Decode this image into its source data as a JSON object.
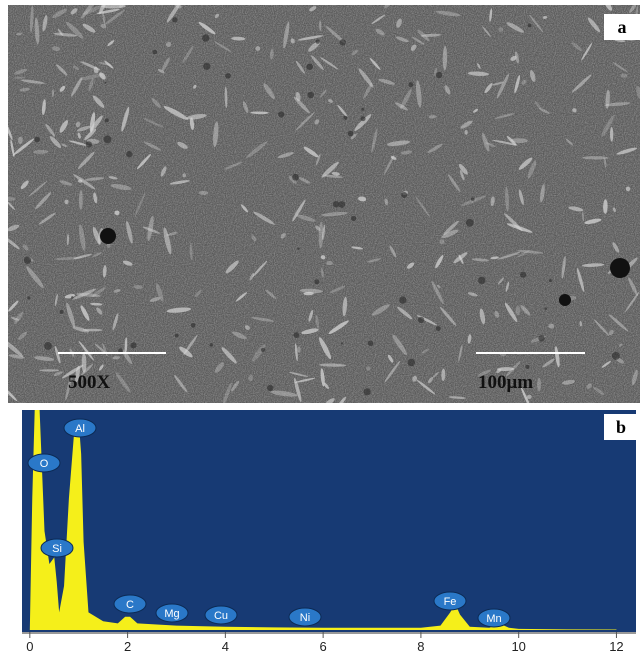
{
  "image": {
    "label": "a",
    "magnification": "500X",
    "scale_bar": "100μm"
  },
  "chart_data": {
    "type": "area",
    "label": "b",
    "color": "#f5ef1a",
    "x": [
      0,
      0.05,
      0.1,
      0.2,
      0.3,
      0.4,
      0.5,
      0.55,
      0.6,
      0.7,
      0.8,
      0.9,
      0.95,
      1.0,
      1.05,
      1.1,
      1.2,
      1.5,
      1.8,
      1.95,
      2.05,
      2.2,
      2.6,
      3,
      4,
      5,
      6,
      7,
      8,
      8.4,
      8.6,
      8.7,
      8.8,
      9,
      9.4,
      9.6,
      9.8,
      10,
      11,
      12
    ],
    "values": [
      0,
      60,
      100,
      100,
      45,
      30,
      33,
      22,
      8,
      20,
      60,
      88,
      95,
      95,
      80,
      40,
      8,
      4,
      3,
      6,
      6,
      3,
      2.5,
      2,
      1.5,
      1.2,
      1,
      1,
      1,
      2,
      8,
      12,
      7,
      1.5,
      1,
      3,
      1,
      0.5,
      0.3,
      0.2
    ],
    "xlim": [
      -0.16,
      12.4
    ],
    "ylim": [
      0,
      100
    ],
    "xticks": [
      0,
      2,
      4,
      6,
      8,
      10,
      12
    ],
    "annotations": [
      "Al",
      "O",
      "Si",
      "C",
      "Mg",
      "Cu",
      "Ni",
      "Fe",
      "Mn"
    ]
  }
}
